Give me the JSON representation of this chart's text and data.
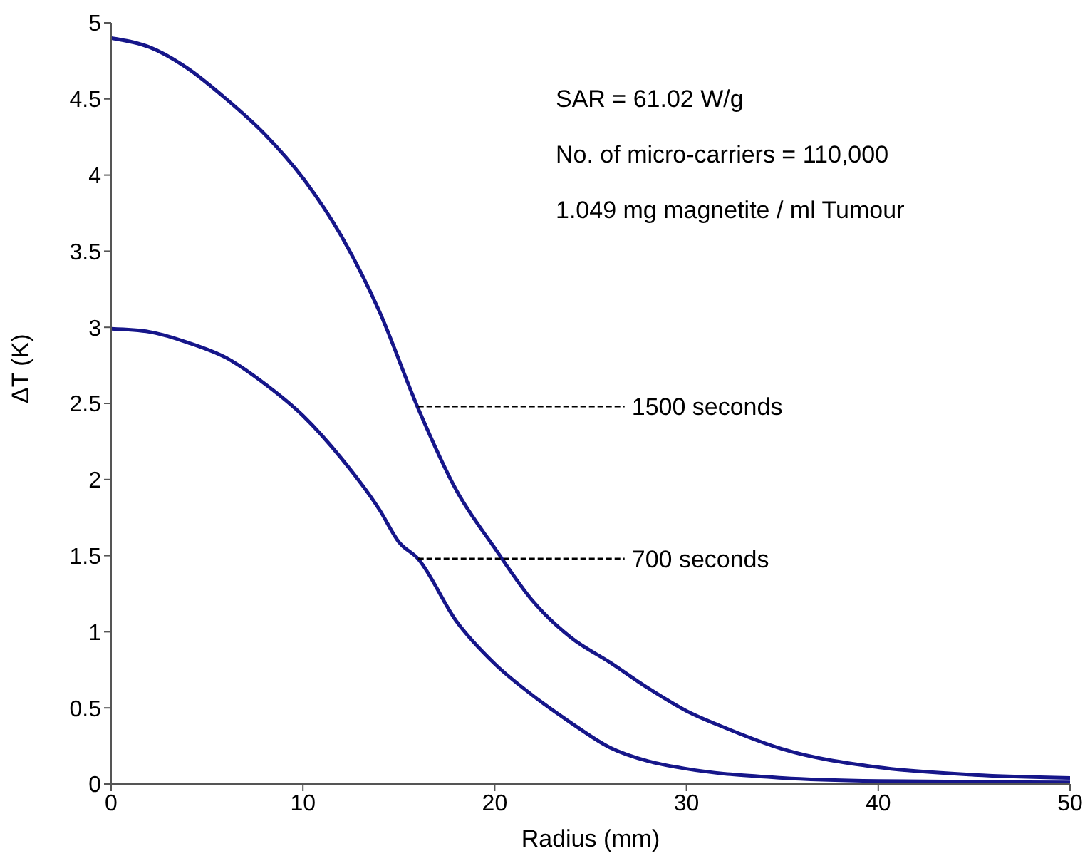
{
  "chart_data": {
    "type": "line",
    "xlabel": "Radius (mm)",
    "ylabel": "ΔT (K)",
    "xlim": [
      0,
      50
    ],
    "xticks": [
      0,
      10,
      20,
      30,
      40,
      50
    ],
    "ylim": [
      0,
      5
    ],
    "yticks": [
      0,
      0.5,
      1,
      1.5,
      2,
      2.5,
      3,
      3.5,
      4,
      4.5,
      5
    ],
    "grid": false,
    "legend": false,
    "marker": "none",
    "line_style": "solid",
    "series": [
      {
        "color": "#16168a",
        "x": [
          0,
          2,
          4,
          6,
          8,
          10,
          12,
          14,
          16,
          18,
          20,
          22,
          24,
          26,
          28,
          30,
          32,
          35,
          40,
          45,
          50
        ],
        "values": [
          4.9,
          4.84,
          4.7,
          4.5,
          4.27,
          3.98,
          3.6,
          3.1,
          2.47,
          1.93,
          1.55,
          1.2,
          0.96,
          0.8,
          0.63,
          0.48,
          0.37,
          0.23,
          0.11,
          0.06,
          0.04
        ]
      },
      {
        "color": "#16168a",
        "x": [
          0,
          2,
          4,
          6,
          8,
          10,
          12,
          14,
          15,
          16,
          18,
          20,
          22,
          24,
          26,
          28,
          30,
          35,
          40,
          50
        ],
        "values": [
          2.99,
          2.97,
          2.9,
          2.8,
          2.63,
          2.42,
          2.14,
          1.8,
          1.59,
          1.48,
          1.07,
          0.79,
          0.58,
          0.4,
          0.24,
          0.15,
          0.1,
          0.04,
          0.02,
          0.01
        ]
      }
    ],
    "annotations": [
      "SAR = 61.02 W/g",
      "No. of micro-carriers = 110,000",
      "1.049 mg magnetite / ml Tumour",
      {
        "text": "1500 seconds",
        "x": 16,
        "y": 2.48
      },
      {
        "text": "700 seconds",
        "x": 16,
        "y": 1.48
      }
    ]
  }
}
